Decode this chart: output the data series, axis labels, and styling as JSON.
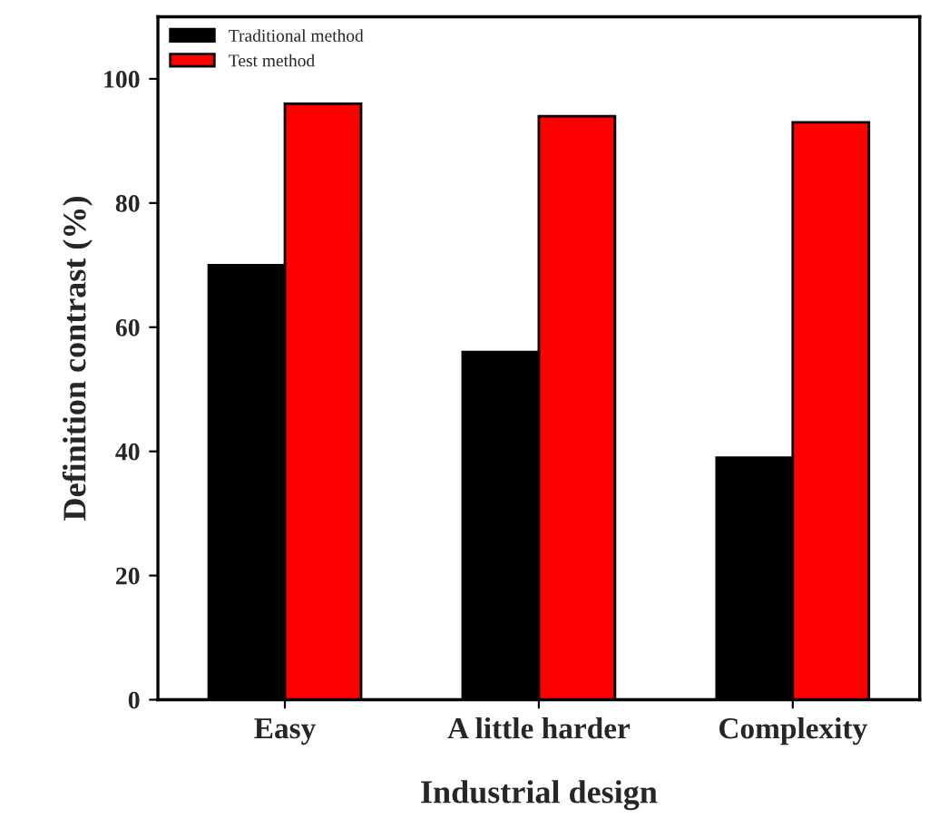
{
  "chart_data": {
    "type": "bar",
    "xlabel": "Industrial design",
    "ylabel": "Definition contrast (%)",
    "categories": [
      "Easy",
      "A little harder",
      "Complexity"
    ],
    "series": [
      {
        "name": "Traditional method",
        "color": "#000000",
        "values": [
          70,
          56,
          39
        ]
      },
      {
        "name": "Test method",
        "color": "#ff0000",
        "values": [
          96,
          94,
          93
        ]
      }
    ],
    "ylim": [
      0,
      110
    ],
    "yticks": [
      0,
      20,
      40,
      60,
      80,
      100
    ],
    "grid": false,
    "legend": "top left"
  }
}
